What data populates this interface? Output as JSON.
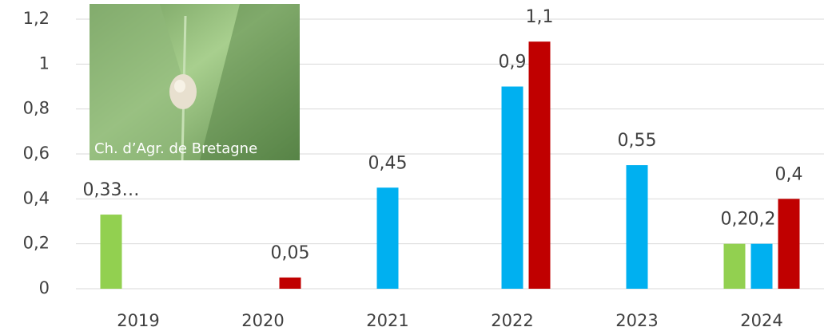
{
  "chart_data": {
    "type": "bar",
    "categories": [
      "2019",
      "2020",
      "2021",
      "2022",
      "2023",
      "2024"
    ],
    "series": [
      {
        "color": "#92d050",
        "values": [
          0.33,
          null,
          null,
          null,
          null,
          0.2
        ],
        "value_labels": [
          "0,33…",
          null,
          null,
          null,
          null,
          "0,2"
        ]
      },
      {
        "color": "#00b0f0",
        "values": [
          null,
          null,
          0.45,
          0.9,
          0.55,
          0.2
        ],
        "value_labels": [
          null,
          null,
          "0,45",
          "0,9",
          "0,55",
          "0,2"
        ]
      },
      {
        "color": "#c00000",
        "values": [
          null,
          0.05,
          null,
          1.1,
          null,
          0.4
        ],
        "value_labels": [
          null,
          "0,05",
          null,
          "1,1",
          null,
          "0,4"
        ]
      }
    ],
    "ylim": [
      0,
      1.2
    ],
    "yticks": [
      0,
      {
        "value": 0.2,
        "label": "0,2"
      },
      {
        "value": 0.4,
        "label": "0,4"
      },
      {
        "value": 0.6,
        "label": "0,6"
      },
      {
        "value": 0.8,
        "label": "0,8"
      },
      1,
      {
        "value": 1.2,
        "label": "1,2"
      }
    ],
    "grid": true,
    "image_caption": "Ch. d’Agr. de Bretagne"
  }
}
